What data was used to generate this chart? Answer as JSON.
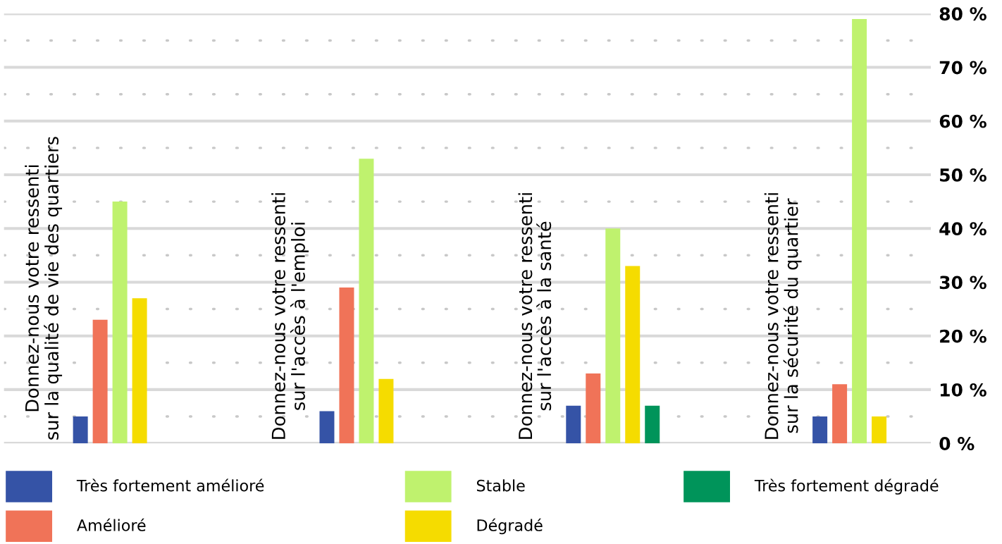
{
  "chart_data": {
    "type": "bar",
    "categories": [
      "Donnez-nous votre ressenti\nsur la qualité de vie des quartiers",
      "Donnez-nous votre ressenti\nsur l'accès à l'emploi",
      "Donnez-nous votre ressenti\nsur l'accès à la santé",
      "Donnez-nous votre ressenti\nsur la sécurité du quartier"
    ],
    "series": [
      {
        "name": "Très fortement amélioré",
        "color": "#3553a6",
        "values": [
          5,
          6,
          7,
          5
        ]
      },
      {
        "name": "Amélioré",
        "color": "#f07358",
        "values": [
          23,
          29,
          13,
          11
        ]
      },
      {
        "name": "Stable",
        "color": "#bff26e",
        "values": [
          45,
          53,
          40,
          79
        ]
      },
      {
        "name": "Dégradé",
        "color": "#f5dc00",
        "values": [
          27,
          12,
          33,
          5
        ]
      },
      {
        "name": "Très fortement dégradé",
        "color": "#00945a",
        "values": [
          null,
          null,
          7,
          null
        ]
      }
    ],
    "ylim": [
      0,
      80
    ],
    "yticks": [
      {
        "value": 0,
        "label": "0 %"
      },
      {
        "value": 5,
        "label": null
      },
      {
        "value": 10,
        "label": "10 %"
      },
      {
        "value": 15,
        "label": null
      },
      {
        "value": 20,
        "label": "20 %"
      },
      {
        "value": 25,
        "label": null
      },
      {
        "value": 30,
        "label": "30 %"
      },
      {
        "value": 35,
        "label": null
      },
      {
        "value": 40,
        "label": "40 %"
      },
      {
        "value": 45,
        "label": null
      },
      {
        "value": 50,
        "label": "50 %"
      },
      {
        "value": 55,
        "label": null
      },
      {
        "value": 60,
        "label": "60 %"
      },
      {
        "value": 65,
        "label": null
      },
      {
        "value": 70,
        "label": "70 %"
      },
      {
        "value": 75,
        "label": null
      },
      {
        "value": 80,
        "label": "80 %"
      }
    ],
    "grid": "y",
    "legend": "bottom"
  }
}
